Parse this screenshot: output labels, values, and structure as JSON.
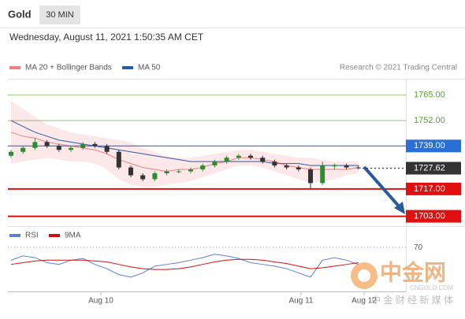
{
  "header": {
    "symbol": "Gold",
    "timeframe": "30 MIN",
    "timestamp": "Wednesday, August 11, 2021 1:50:35 AM CET"
  },
  "chart_data": {
    "type": "candlestick",
    "legend": [
      {
        "name": "MA 20 + Bollinger Bands",
        "color": "#f08080"
      },
      {
        "name": "MA 50",
        "color": "#2a5aa8"
      }
    ],
    "credit": "Research © 2021 Trading Central",
    "ylim": [
      1698,
      1773
    ],
    "open": [
      1734,
      1736,
      1738,
      1741,
      1739,
      1737,
      1738,
      1740,
      1739,
      1736,
      1728,
      1724,
      1722,
      1725,
      1726,
      1726,
      1727,
      1729,
      1731,
      1733,
      1734,
      1733,
      1731,
      1729,
      1728,
      1727,
      1720,
      1729,
      1729,
      1728
    ],
    "high": [
      1737,
      1739,
      1743,
      1742,
      1740,
      1739,
      1741,
      1741,
      1740,
      1737,
      1729,
      1725,
      1726,
      1727,
      1727,
      1728,
      1730,
      1732,
      1734,
      1735,
      1735,
      1734,
      1732,
      1730,
      1729,
      1728,
      1731,
      1730,
      1730,
      1729
    ],
    "low": [
      1733,
      1735,
      1737,
      1738,
      1736,
      1736,
      1737,
      1738,
      1735,
      1727,
      1723,
      1721,
      1721,
      1724,
      1725,
      1725,
      1726,
      1728,
      1730,
      1732,
      1732,
      1730,
      1728,
      1727,
      1726,
      1717,
      1719,
      1727,
      1727,
      1727
    ],
    "close": [
      1736,
      1738,
      1741,
      1739,
      1737,
      1738,
      1740,
      1739,
      1736,
      1728,
      1724,
      1722,
      1725,
      1726,
      1726,
      1727,
      1729,
      1731,
      1733,
      1734,
      1733,
      1731,
      1729,
      1728,
      1727,
      1720,
      1729,
      1729,
      1728,
      1727.62
    ],
    "up_color": "#2e8b2e",
    "down_color": "#333333",
    "ma20": [
      1746,
      1744,
      1743,
      1741,
      1740,
      1739,
      1738,
      1737,
      1735,
      1732,
      1730,
      1728,
      1727,
      1726,
      1727,
      1727,
      1728,
      1730,
      1731,
      1733,
      1733,
      1732,
      1731,
      1729,
      1728,
      1727,
      1727,
      1727,
      1727,
      1728
    ],
    "band_upper": [
      1762,
      1758,
      1754,
      1750,
      1748,
      1746,
      1745,
      1744,
      1743,
      1742,
      1741,
      1738,
      1736,
      1734,
      1733,
      1733,
      1734,
      1735,
      1736,
      1737,
      1737,
      1736,
      1735,
      1734,
      1733,
      1733,
      1732,
      1731,
      1731,
      1731
    ],
    "band_lower": [
      1730,
      1731,
      1732,
      1733,
      1732,
      1731,
      1731,
      1730,
      1727,
      1722,
      1719,
      1718,
      1718,
      1719,
      1720,
      1721,
      1723,
      1725,
      1727,
      1729,
      1729,
      1728,
      1726,
      1724,
      1722,
      1720,
      1721,
      1722,
      1724,
      1725
    ],
    "ma50": [
      1752,
      1749,
      1746,
      1744,
      1742,
      1741,
      1740,
      1739,
      1738,
      1737,
      1736,
      1735,
      1734,
      1733,
      1732,
      1731,
      1731,
      1731,
      1731,
      1731,
      1731,
      1731,
      1730,
      1730,
      1730,
      1729,
      1729,
      1729,
      1729,
      1729
    ],
    "levels": [
      {
        "value": 1765,
        "label": "1765.00",
        "color": "#5a9e2f",
        "boxed": false
      },
      {
        "value": 1752,
        "label": "1752.00",
        "color": "#5a9e2f",
        "boxed": false
      },
      {
        "value": 1739,
        "label": "1739.00",
        "color": "#2a6fd6",
        "boxed": true
      },
      {
        "value": 1727.62,
        "label": "1727.62",
        "color": "#333333",
        "boxed": true
      },
      {
        "value": 1717,
        "label": "1717.00",
        "color": "#e01010",
        "boxed": true
      },
      {
        "value": 1703,
        "label": "1703.00",
        "color": "#e01010",
        "boxed": true
      }
    ],
    "rsi": {
      "legend": [
        {
          "name": "RSI",
          "color": "#5b7fd6"
        },
        {
          "name": "9MA",
          "color": "#d01010"
        }
      ],
      "ylim": [
        20,
        85
      ],
      "yticks": [
        70
      ],
      "rsi": [
        55,
        60,
        58,
        52,
        50,
        55,
        57,
        50,
        45,
        38,
        35,
        40,
        48,
        50,
        52,
        55,
        58,
        62,
        60,
        57,
        52,
        50,
        48,
        45,
        40,
        35,
        55,
        58,
        55,
        50
      ],
      "ma9": [
        50,
        52,
        54,
        55,
        55,
        55,
        55,
        54,
        53,
        50,
        47,
        45,
        44,
        44,
        45,
        47,
        50,
        53,
        55,
        56,
        56,
        55,
        53,
        51,
        48,
        45,
        46,
        48,
        50,
        52
      ]
    },
    "x_labels": [
      "Aug 10",
      "Aug 11",
      "Aug 12"
    ]
  },
  "watermark": {
    "brand": "中金网",
    "site": "CNGOLD.COM",
    "slogan": "中 金 财 经 新 媒 体"
  }
}
